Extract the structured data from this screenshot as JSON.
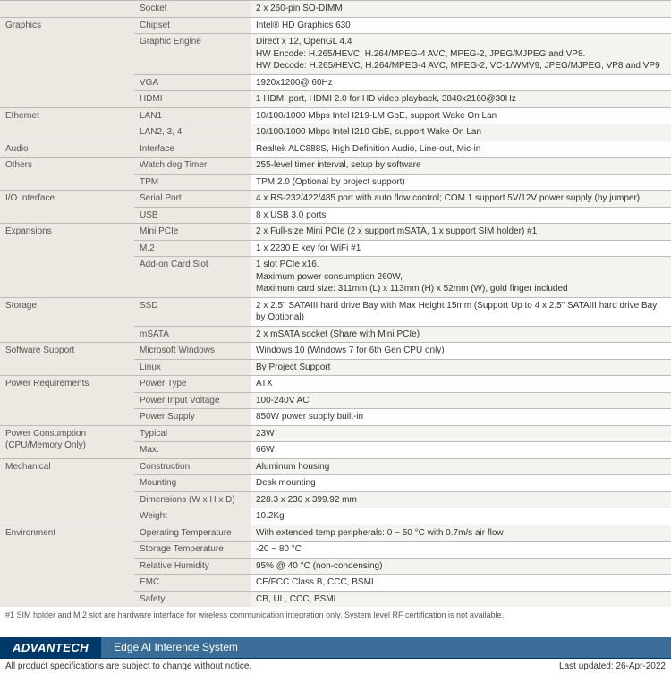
{
  "colors": {
    "catBg": "#ece8e2",
    "altValBg": "#f5f3ef",
    "border": "#bbb",
    "brandDark": "#003a6a",
    "brandLight": "#3a6e98"
  },
  "sections": [
    {
      "cat": "",
      "rows": [
        {
          "sub": "Socket",
          "val": "2 x 260-pin SO-DIMM"
        }
      ]
    },
    {
      "cat": "Graphics",
      "rows": [
        {
          "sub": "Chipset",
          "val": "Intel® HD Graphics 630"
        },
        {
          "sub": "Graphic Engine",
          "val": "Direct x 12, OpenGL 4.4\nHW Encode: H.265/HEVC, H.264/MPEG-4 AVC, MPEG-2, JPEG/MJPEG and VP8.\nHW Decode: H.265/HEVC, H.264/MPEG-4 AVC, MPEG-2, VC-1/WMV9, JPEG/MJPEG, VP8 and VP9"
        },
        {
          "sub": "VGA",
          "val": "1920x1200@ 60Hz"
        },
        {
          "sub": "HDMI",
          "val": "1 HDMI port, HDMI 2.0 for HD video playback, 3840x2160@30Hz"
        }
      ]
    },
    {
      "cat": "Ethernet",
      "rows": [
        {
          "sub": "LAN1",
          "val": "10/100/1000 Mbps Intel I219-LM GbE, support Wake On Lan"
        },
        {
          "sub": "LAN2, 3, 4",
          "val": "10/100/1000 Mbps Intel I210 GbE, support Wake On Lan"
        }
      ]
    },
    {
      "cat": "Audio",
      "rows": [
        {
          "sub": "Interface",
          "val": "Realtek ALC888S, High Definition Audio, Line-out, Mic-in"
        }
      ]
    },
    {
      "cat": "Others",
      "rows": [
        {
          "sub": "Watch dog Timer",
          "val": "255-level timer interval, setup by software"
        },
        {
          "sub": "TPM",
          "val": "TPM 2.0 (Optional by project support)"
        }
      ]
    },
    {
      "cat": "I/O Interface",
      "rows": [
        {
          "sub": "Serial Port",
          "val": "4 x RS-232/422/485 port with auto flow control; COM 1 support 5V/12V power supply (by jumper)"
        },
        {
          "sub": "USB",
          "val": "8 x USB 3.0 ports"
        }
      ]
    },
    {
      "cat": "Expansions",
      "rows": [
        {
          "sub": "Mini PCIe",
          "val": "2 x Full-size Mini PCIe (2 x support mSATA, 1 x support SIM holder) #1"
        },
        {
          "sub": "M.2",
          "val": "1 x 2230 E key for WiFi #1"
        },
        {
          "sub": "Add-on Card Slot",
          "val": "1 slot PCIe x16.\nMaximum power consumption 260W,\nMaximum card size: 311mm (L) x 113mm (H) x 52mm (W), gold finger included"
        }
      ]
    },
    {
      "cat": "Storage",
      "rows": [
        {
          "sub": "SSD",
          "val": "2 x 2.5\" SATAIII hard drive Bay with Max Height 15mm (Support Up to 4 x 2.5\" SATAIII hard drive Bay by Optional)"
        },
        {
          "sub": "mSATA",
          "val": "2 x mSATA socket (Share with Mini PCIe)"
        }
      ]
    },
    {
      "cat": "Software Support",
      "rows": [
        {
          "sub": "Microsoft Windows",
          "val": "Windows 10 (Windows 7 for 6th Gen CPU only)"
        },
        {
          "sub": "Linux",
          "val": "By Project Support"
        }
      ]
    },
    {
      "cat": "Power Requirements",
      "rows": [
        {
          "sub": "Power Type",
          "val": "ATX"
        },
        {
          "sub": "Power Input Voltage",
          "val": "100-240V AC"
        },
        {
          "sub": "Power Supply",
          "val": "850W power supply built-in"
        }
      ]
    },
    {
      "cat": "Power Consumption\n(CPU/Memory Only)",
      "rows": [
        {
          "sub": "Typical",
          "val": "23W"
        },
        {
          "sub": "Max.",
          "val": "66W"
        }
      ]
    },
    {
      "cat": "Mechanical",
      "rows": [
        {
          "sub": "Construction",
          "val": "Aluminum housing"
        },
        {
          "sub": "Mounting",
          "val": "Desk mounting"
        },
        {
          "sub": "Dimensions (W x H x D)",
          "val": "228.3 x 230 x 399.92 mm"
        },
        {
          "sub": "Weight",
          "val": "10.2Kg"
        }
      ]
    },
    {
      "cat": "Environment",
      "rows": [
        {
          "sub": "Operating Temperature",
          "val": "With extended temp peripherals: 0 ~ 50 °C with 0.7m/s air flow"
        },
        {
          "sub": "Storage Temperature",
          "val": "-20 ~ 80 °C"
        },
        {
          "sub": "Relative Humidity",
          "val": "95% @ 40 °C (non-condensing)"
        },
        {
          "sub": "EMC",
          "val": "CE/FCC Class B, CCC, BSMI"
        },
        {
          "sub": "Safety",
          "val": "CB, UL, CCC, BSMI"
        }
      ]
    }
  ],
  "footnote": "#1 SIM holder and M.2 slot are hardware interface for wireless communication integration only. System level RF certification is not available.",
  "brand": "ADVANTECH",
  "productLine": "Edge AI Inference System",
  "disclaimer": "All product specifications are subject to change without notice.",
  "lastUpdated": "Last updated: 26-Apr-2022"
}
